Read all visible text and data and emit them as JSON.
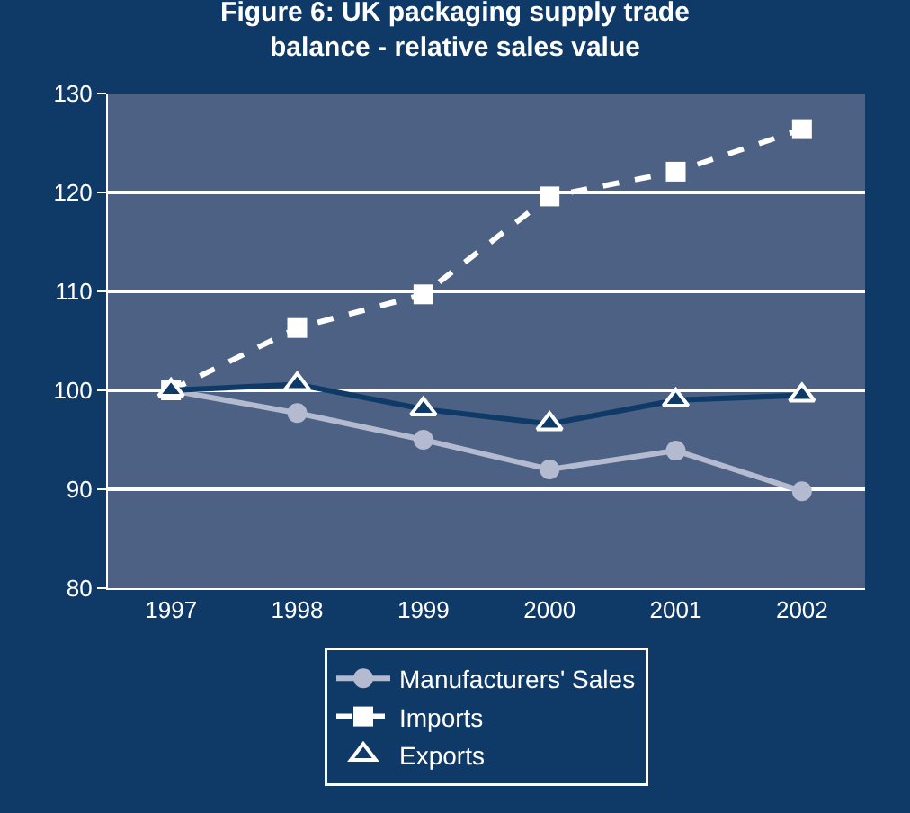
{
  "chart_data": {
    "type": "line",
    "title": "Figure 6: UK packaging supply trade balance - relative sales value",
    "categories": [
      "1997",
      "1998",
      "1999",
      "2000",
      "2001",
      "2002"
    ],
    "series": [
      {
        "name": "Manufacturers' Sales",
        "color": "#b4bbd0",
        "marker": "circle",
        "line_style": "solid",
        "values": [
          100,
          97.7,
          95.0,
          92.0,
          93.9,
          89.8
        ]
      },
      {
        "name": "Imports",
        "color": "#ffffff",
        "marker": "square",
        "line_style": "dashed",
        "values": [
          100,
          106.3,
          109.7,
          119.6,
          122.1,
          126.4
        ]
      },
      {
        "name": "Exports",
        "color": "#0f3a68",
        "marker": "triangle",
        "line_style": "solid",
        "values": [
          100,
          100.6,
          98.1,
          96.6,
          99.0,
          99.5
        ]
      }
    ],
    "ylim": [
      80,
      130
    ],
    "yticks": [
      80,
      90,
      100,
      110,
      120,
      130
    ],
    "grid": "y",
    "legend": "bottom"
  }
}
